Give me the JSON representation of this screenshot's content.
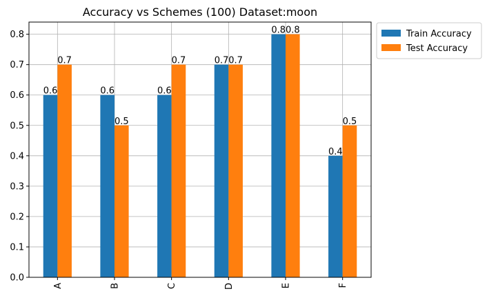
{
  "chart_data": {
    "type": "bar",
    "title": "Accuracy vs Schemes (100) Dataset:moon",
    "xlabel": "",
    "ylabel": "",
    "categories": [
      "A",
      "B",
      "C",
      "D",
      "E",
      "F"
    ],
    "series": [
      {
        "name": "Train Accuracy",
        "color": "#1f77b4",
        "values": [
          0.6,
          0.6,
          0.6,
          0.7,
          0.8,
          0.4
        ]
      },
      {
        "name": "Test Accuracy",
        "color": "#ff7f0e",
        "values": [
          0.7,
          0.5,
          0.7,
          0.7,
          0.8,
          0.5
        ]
      }
    ],
    "ylim": [
      0,
      0.84
    ],
    "yticks": [
      "0.0",
      "0.1",
      "0.2",
      "0.3",
      "0.4",
      "0.5",
      "0.6",
      "0.7",
      "0.8"
    ],
    "grid": true,
    "legend_position": "outside-top-right",
    "tick_label_rotation": 90
  }
}
